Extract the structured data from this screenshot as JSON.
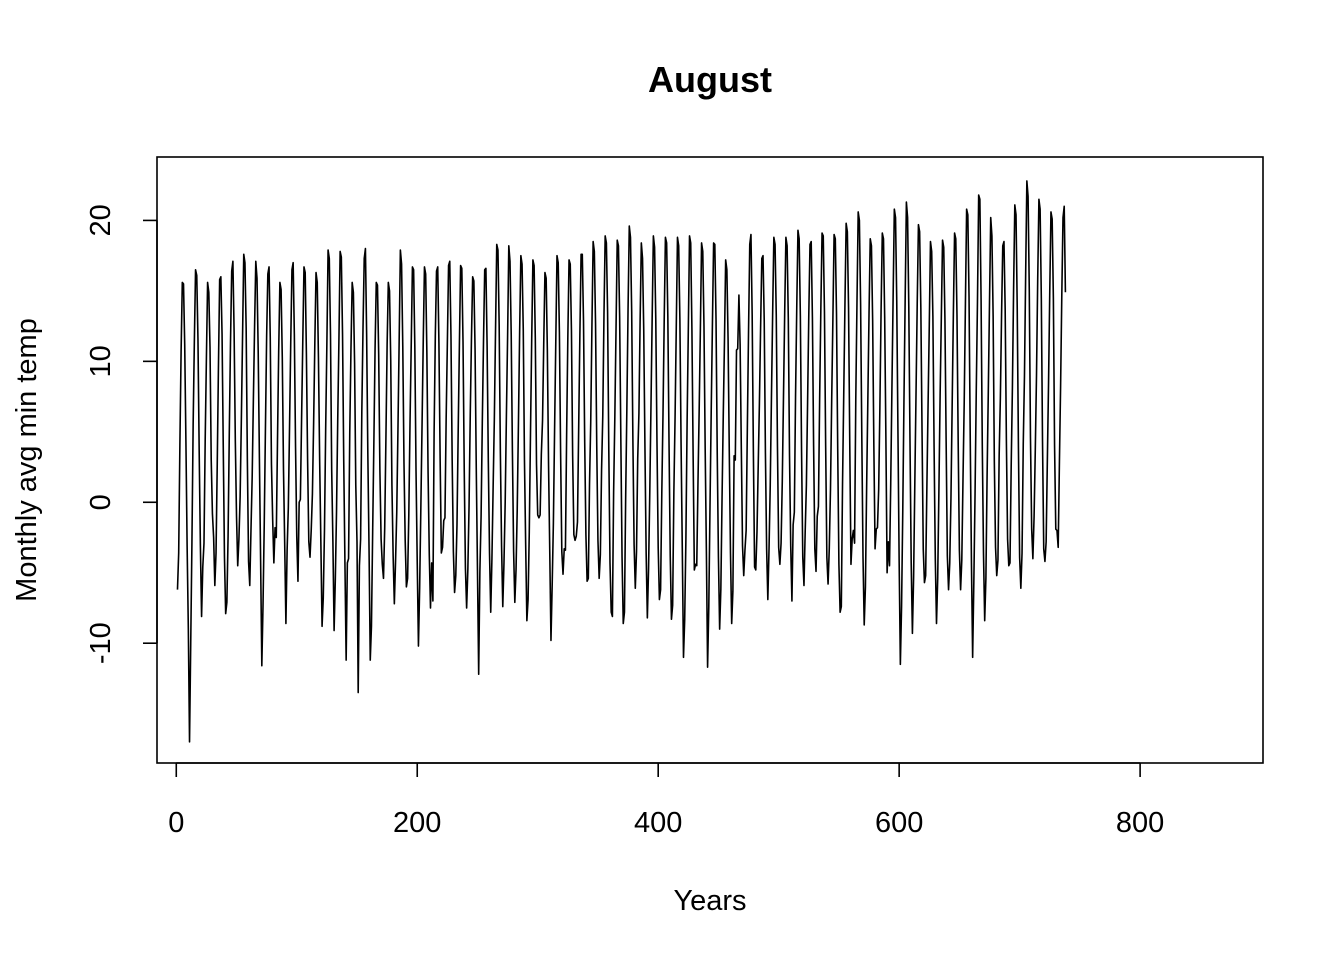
{
  "chart_data": {
    "type": "line",
    "title": "August",
    "xlabel": "Years",
    "ylabel": "Monthly avg min temp",
    "xlim": [
      -16,
      902
    ],
    "ylim": [
      -18.5,
      24.5
    ],
    "x_ticks": [
      0,
      200,
      400,
      600,
      800
    ],
    "x_tick_labels": [
      "0",
      "200",
      "400",
      "600",
      "800"
    ],
    "y_ticks": [
      -10,
      0,
      10,
      20
    ],
    "y_tick_labels": [
      "-10",
      "0",
      "10",
      "20"
    ],
    "grid": false,
    "legend": "none",
    "line_color": "#000000",
    "series": [
      {
        "x_start": 1,
        "x_step": 1,
        "values": [
          -6.2,
          -3.6,
          4.1,
          10.7,
          15.6,
          15.5,
          11.2,
          4.3,
          -3.1,
          -8.9,
          -17.0,
          -10.0,
          -2.8,
          5.5,
          11.4,
          16.5,
          16.1,
          11.6,
          3.7,
          -3.0,
          -8.1,
          -4.6,
          -2.9,
          4.4,
          10.2,
          15.6,
          14.9,
          11.0,
          3.0,
          -0.8,
          -2.5,
          -5.9,
          -3.6,
          2.7,
          9.6,
          15.8,
          16.0,
          11.9,
          3.9,
          -3.9,
          -7.9,
          -7.1,
          -2.4,
          4.9,
          11.3,
          16.4,
          17.1,
          12.1,
          4.4,
          -1.0,
          -4.5,
          -2.6,
          0.4,
          5.8,
          11.7,
          17.6,
          17.0,
          12.4,
          3.0,
          -4.2,
          -5.9,
          -2.0,
          1.8,
          7.3,
          12.5,
          17.1,
          15.9,
          10.7,
          3.1,
          -4.1,
          -11.6,
          -7.3,
          -1.6,
          5.2,
          11.8,
          16.2,
          16.7,
          11.7,
          2.7,
          -1.2,
          -4.3,
          -1.8,
          -2.5,
          4.3,
          10.7,
          15.6,
          15.1,
          10.2,
          2.3,
          -3.0,
          -8.6,
          -3.4,
          -0.4,
          5.3,
          11.3,
          16.5,
          17.0,
          11.9,
          3.9,
          -2.4,
          -5.6,
          0.0,
          0.2,
          5.9,
          11.4,
          16.7,
          16.3,
          10.6,
          3.0,
          -2.8,
          -3.9,
          -2.0,
          0.6,
          5.6,
          11.3,
          16.3,
          15.6,
          10.3,
          3.0,
          -2.8,
          -8.8,
          -6.8,
          -2.0,
          5.2,
          11.3,
          17.9,
          17.3,
          11.9,
          2.3,
          -2.8,
          -9.1,
          -5.5,
          -0.7,
          5.8,
          11.5,
          17.8,
          17.4,
          11.9,
          2.9,
          -4.4,
          -11.2,
          -4.3,
          -4.0,
          5.0,
          10.9,
          15.6,
          14.9,
          9.9,
          1.2,
          -2.8,
          -13.5,
          -4.5,
          -2.6,
          6.4,
          12.4,
          17.3,
          18.0,
          11.9,
          3.4,
          -3.3,
          -11.2,
          -8.8,
          -2.1,
          4.2,
          10.9,
          15.6,
          15.4,
          10.5,
          2.3,
          -2.6,
          -4.4,
          -5.4,
          -1.8,
          4.5,
          11.2,
          15.6,
          15.0,
          10.1,
          1.2,
          -3.8,
          -7.2,
          -4.2,
          -0.7,
          5.2,
          11.5,
          17.9,
          16.9,
          11.1,
          2.8,
          -2.7,
          -6.0,
          -5.4,
          -0.9,
          5.6,
          11.1,
          16.7,
          16.5,
          11.0,
          2.2,
          -4.3,
          -10.2,
          -6.1,
          -0.4,
          5.5,
          11.5,
          16.7,
          16.2,
          10.6,
          2.1,
          -3.7,
          -7.5,
          -4.3,
          -7.0,
          4.9,
          11.8,
          16.4,
          16.7,
          11.3,
          3.1,
          -3.6,
          -3.2,
          -1.3,
          -1.1,
          5.9,
          11.3,
          16.8,
          17.1,
          11.8,
          3.0,
          -3.5,
          -6.4,
          -5.2,
          -1.6,
          5.1,
          11.2,
          16.8,
          16.6,
          11.4,
          2.4,
          -4.7,
          -7.5,
          -4.8,
          -0.3,
          6.2,
          11.6,
          16.0,
          15.7,
          10.8,
          2.4,
          -4.8,
          -12.2,
          -4.9,
          -1.0,
          5.6,
          11.4,
          16.5,
          16.6,
          11.1,
          2.9,
          -3.6,
          -7.8,
          -4.0,
          1.1,
          5.9,
          12.3,
          18.3,
          17.9,
          12.6,
          3.5,
          -3.1,
          -7.4,
          -4.3,
          0.0,
          6.1,
          11.7,
          18.2,
          17.1,
          11.9,
          3.6,
          -3.5,
          -7.1,
          -4.8,
          -0.5,
          5.6,
          12.1,
          17.5,
          16.9,
          12.3,
          3.0,
          -3.0,
          -8.4,
          -6.9,
          -2.1,
          4.9,
          11.5,
          17.2,
          16.8,
          11.6,
          2.7,
          -0.9,
          -1.1,
          -0.9,
          3.4,
          5.8,
          11.3,
          16.3,
          15.9,
          10.8,
          2.6,
          -3.5,
          -9.8,
          -5.9,
          -1.5,
          5.1,
          11.4,
          17.5,
          17.0,
          12.1,
          3.5,
          -3.5,
          -5.1,
          -3.3,
          -3.4,
          4.8,
          11.7,
          17.2,
          16.9,
          12.2,
          3.3,
          -2.3,
          -2.7,
          -2.4,
          -1.4,
          5.3,
          11.9,
          17.6,
          17.6,
          12.9,
          4.3,
          -2.3,
          -5.6,
          -5.4,
          1.3,
          5.7,
          12.5,
          18.5,
          17.8,
          12.7,
          4.0,
          -2.7,
          -5.4,
          -3.7,
          2.3,
          6.1,
          13.3,
          18.9,
          18.4,
          13.5,
          3.7,
          -4.3,
          -7.8,
          -8.1,
          0.7,
          6.0,
          12.3,
          18.6,
          18.2,
          13.2,
          4.4,
          -3.9,
          -8.6,
          -7.8,
          0.3,
          6.7,
          13.8,
          19.6,
          18.8,
          13.5,
          4.4,
          -3.0,
          -6.1,
          -3.5,
          3.1,
          6.3,
          12.9,
          18.4,
          17.3,
          12.2,
          3.9,
          -3.6,
          -8.2,
          -4.7,
          0.6,
          6.8,
          13.1,
          18.9,
          18.1,
          13.0,
          4.2,
          -3.2,
          -6.9,
          -6.2,
          0.7,
          6.3,
          13.0,
          18.8,
          18.4,
          13.2,
          4.1,
          -3.8,
          -8.3,
          -7.3,
          0.7,
          6.0,
          12.4,
          18.8,
          18.2,
          13.0,
          4.1,
          -3.3,
          -11.0,
          -8.3,
          -2.6,
          5.7,
          12.2,
          18.9,
          18.4,
          12.2,
          3.3,
          -4.8,
          -4.4,
          -4.5,
          1.3,
          6.5,
          12.2,
          18.4,
          17.8,
          12.5,
          3.8,
          -3.5,
          -11.7,
          -7.4,
          -0.3,
          6.4,
          12.6,
          18.4,
          18.3,
          13.0,
          3.5,
          -3.9,
          -9.0,
          -6.2,
          0.3,
          6.1,
          11.4,
          17.2,
          16.5,
          11.6,
          3.6,
          -3.6,
          -8.6,
          -6.3,
          3.3,
          3.0,
          10.8,
          10.9,
          14.7,
          11.2,
          3.8,
          -3.1,
          -5.2,
          -3.4,
          -2.0,
          5.3,
          12.2,
          18.3,
          19.0,
          13.3,
          3.6,
          -4.6,
          -4.8,
          -2.1,
          2.5,
          7.0,
          12.4,
          17.3,
          17.5,
          12.9,
          3.5,
          -3.3,
          -6.9,
          -3.3,
          1.2,
          7.4,
          13.4,
          18.8,
          18.3,
          13.3,
          3.9,
          -3.2,
          -4.4,
          -2.9,
          1.5,
          7.5,
          13.5,
          18.8,
          18.2,
          13.0,
          3.3,
          -3.1,
          -7.0,
          -1.6,
          -0.7,
          7.5,
          13.8,
          19.3,
          18.7,
          13.2,
          3.6,
          -3.9,
          -5.9,
          -2.1,
          1.2,
          7.1,
          13.3,
          18.3,
          18.5,
          13.1,
          4.0,
          -3.3,
          -4.9,
          -1.0,
          -0.3,
          7.3,
          13.7,
          19.1,
          18.9,
          13.5,
          4.0,
          -3.9,
          -5.8,
          -3.3,
          0.9,
          7.2,
          13.0,
          19.0,
          18.7,
          13.4,
          3.8,
          -4.4,
          -7.8,
          -7.4,
          1.3,
          7.6,
          14.0,
          19.8,
          19.2,
          13.8,
          4.2,
          -4.4,
          -2.6,
          -2.0,
          -2.9,
          7.3,
          14.2,
          20.6,
          20.0,
          14.1,
          4.7,
          -3.9,
          -8.7,
          -6.0,
          1.0,
          7.2,
          13.4,
          18.7,
          18.2,
          12.9,
          4.0,
          -3.3,
          -1.9,
          -1.8,
          0.9,
          6.7,
          13.6,
          19.1,
          18.7,
          13.1,
          4.5,
          -5.0,
          -2.8,
          -4.5,
          1.3,
          8.1,
          14.6,
          20.8,
          20.2,
          14.3,
          5.0,
          -4.2,
          -11.5,
          -7.4,
          -0.6,
          7.3,
          14.5,
          21.3,
          20.2,
          13.9,
          4.3,
          -4.3,
          -9.3,
          -5.3,
          1.3,
          7.7,
          14.1,
          19.7,
          19.2,
          13.8,
          5.0,
          -3.3,
          -5.7,
          -5.2,
          1.0,
          6.9,
          12.5,
          18.5,
          17.8,
          13.2,
          3.9,
          -4.0,
          -8.6,
          -5.4,
          0.9,
          7.6,
          13.1,
          18.6,
          18.1,
          13.0,
          4.3,
          -3.8,
          -6.2,
          -4.3,
          0.3,
          6.9,
          13.4,
          19.1,
          18.7,
          13.3,
          4.2,
          -3.4,
          -6.2,
          -4.1,
          1.7,
          7.1,
          14.1,
          20.8,
          20.4,
          14.6,
          4.5,
          -4.2,
          -11.0,
          -5.6,
          0.6,
          7.9,
          14.2,
          21.8,
          21.5,
          14.4,
          4.1,
          -3.6,
          -8.4,
          -5.4,
          1.9,
          7.9,
          14.2,
          20.2,
          18.9,
          13.2,
          2.9,
          -3.2,
          -5.2,
          -4.1,
          3.3,
          7.4,
          13.3,
          18.2,
          18.5,
          13.7,
          4.4,
          -2.6,
          -4.5,
          -4.3,
          2.6,
          8.1,
          15.2,
          21.1,
          20.4,
          13.8,
          3.9,
          -3.9,
          -6.1,
          -3.6,
          4.1,
          8.9,
          16.2,
          22.8,
          21.7,
          15.1,
          4.6,
          -1.9,
          -4.0,
          -1.0,
          3.7,
          9.0,
          15.8,
          21.5,
          20.8,
          14.5,
          4.3,
          -3.3,
          -4.2,
          -2.8,
          2.9,
          8.5,
          14.9,
          20.6,
          20.1,
          14.5,
          4.0,
          -1.9,
          -2.0,
          -3.2,
          2.7,
          8.2,
          14.7,
          20.2,
          21.0,
          14.9
        ]
      }
    ]
  }
}
